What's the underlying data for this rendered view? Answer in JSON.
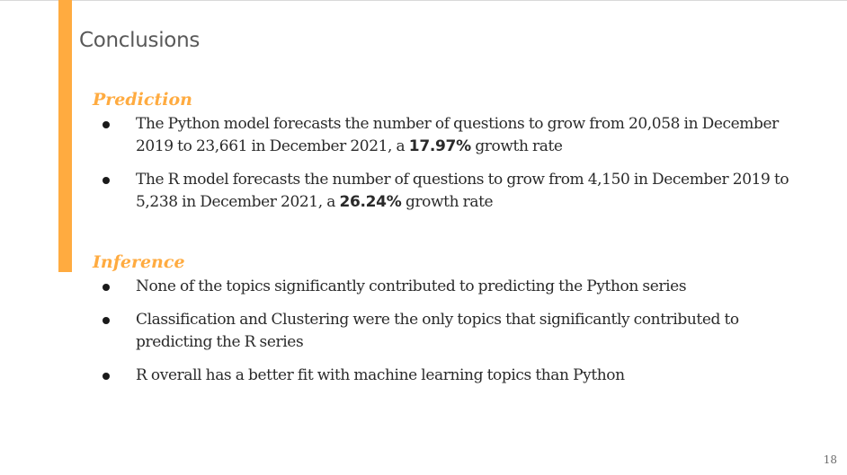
{
  "slide": {
    "title": "Conclusions",
    "page_number": "18",
    "accent_color": "#ffab40"
  },
  "prediction": {
    "heading": "Prediction",
    "items": [
      {
        "text_before": "The Python model forecasts the number of questions to grow from 20,058 in December 2019 to 23,661 in December 2021, a ",
        "bold": "17.97%",
        "text_after": " growth rate"
      },
      {
        "text_before": "The R model forecasts the number of questions to grow from 4,150 in December 2019 to 5,238 in December 2021, a ",
        "bold": "26.24%",
        "text_after": " growth rate"
      }
    ]
  },
  "inference": {
    "heading": "Inference",
    "items": [
      {
        "text": "None of the topics significantly contributed to predicting the Python series"
      },
      {
        "text": "Classification and Clustering were the only topics that significantly contributed to predicting the R series"
      },
      {
        "text": "R overall has a better fit with machine learning topics than Python"
      }
    ]
  }
}
